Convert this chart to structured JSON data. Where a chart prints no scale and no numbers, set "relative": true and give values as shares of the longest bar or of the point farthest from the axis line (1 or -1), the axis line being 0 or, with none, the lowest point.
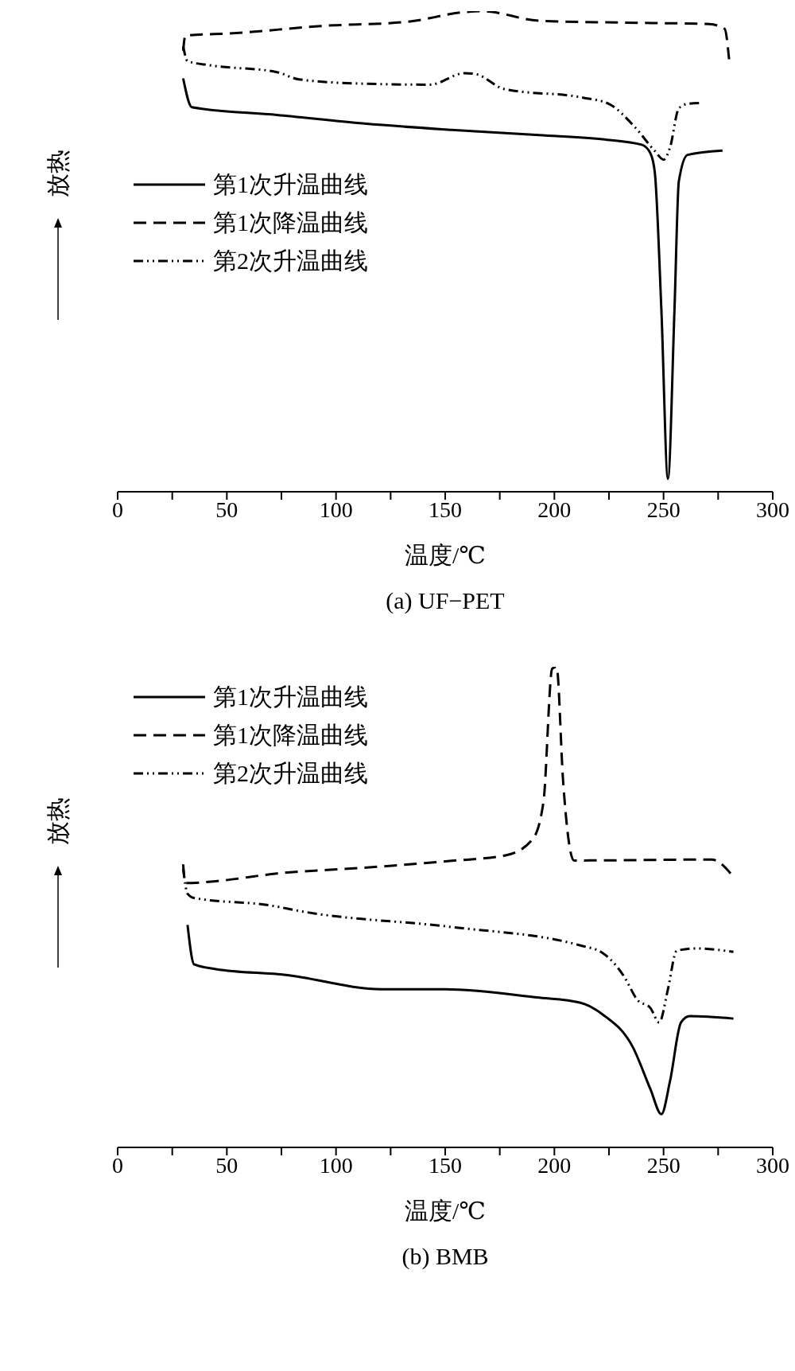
{
  "chart_data": [
    {
      "type": "line",
      "title": "(a) UF−PET",
      "xlabel": "温度/℃",
      "ylabel": "放热",
      "relative": true,
      "xlim": [
        0,
        300
      ],
      "xticks": [
        0,
        {
          "value": 25,
          "label": null
        },
        50,
        {
          "value": 75,
          "label": null
        },
        100,
        {
          "value": 125,
          "label": null
        },
        150,
        {
          "value": 175,
          "label": null
        },
        200,
        {
          "value": 225,
          "label": null
        },
        250,
        {
          "value": 275,
          "label": null
        },
        300
      ],
      "grid": false,
      "legend": "top left",
      "marker": "none",
      "series": [
        {
          "name": "第1次升温曲线",
          "color": "#000000",
          "line_style": "solid",
          "x": [
            30,
            34,
            73,
            113,
            153,
            193,
            223,
            240,
            244,
            246,
            249,
            252,
            255,
            257,
            261,
            277
          ],
          "values": [
            0.86,
            0.8,
            0.784,
            0.766,
            0.753,
            0.742,
            0.733,
            0.722,
            0.704,
            0.664,
            0.379,
            0.027,
            0.379,
            0.646,
            0.701,
            0.71
          ]
        },
        {
          "name": "第1次降温曲线",
          "color": "#000000",
          "line_style": "dashed",
          "x": [
            30,
            31,
            53,
            93,
            133,
            159,
            167,
            193,
            233,
            271,
            278,
            280
          ],
          "values": [
            0.918,
            0.949,
            0.954,
            0.969,
            0.978,
            0.998,
            1.0,
            0.98,
            0.976,
            0.973,
            0.963,
            0.9
          ]
        },
        {
          "name": "第2次升温曲线",
          "color": "#000000",
          "line_style": "dashdot",
          "x": [
            30,
            32,
            43,
            73,
            83,
            113,
            143,
            159,
            164,
            177,
            213,
            225,
            237,
            246,
            250,
            253,
            257,
            261,
            267
          ],
          "values": [
            0.927,
            0.896,
            0.887,
            0.873,
            0.858,
            0.849,
            0.847,
            0.871,
            0.869,
            0.838,
            0.82,
            0.807,
            0.758,
            0.709,
            0.691,
            0.717,
            0.798,
            0.807,
            0.809
          ]
        }
      ]
    },
    {
      "type": "line",
      "title": "(b) BMB",
      "xlabel": "温度/℃",
      "ylabel": "放热",
      "relative": true,
      "xlim": [
        0,
        300
      ],
      "xticks": [
        0,
        {
          "value": 25,
          "label": null
        },
        50,
        {
          "value": 75,
          "label": null
        },
        100,
        {
          "value": 125,
          "label": null
        },
        150,
        {
          "value": 175,
          "label": null
        },
        200,
        {
          "value": 225,
          "label": null
        },
        250,
        {
          "value": 275,
          "label": null
        },
        300
      ],
      "grid": false,
      "legend": "top left",
      "marker": "none",
      "series": [
        {
          "name": "第1次升温曲线",
          "color": "#000000",
          "line_style": "solid",
          "x": [
            32,
            35,
            45,
            77,
            121,
            150,
            192,
            212,
            222,
            236,
            244,
            249,
            253,
            258,
            262,
            282
          ],
          "values": [
            0.463,
            0.381,
            0.371,
            0.359,
            0.329,
            0.329,
            0.312,
            0.301,
            0.277,
            0.208,
            0.121,
            0.069,
            0.139,
            0.26,
            0.273,
            0.268
          ]
        },
        {
          "name": "第1次降温曲线",
          "color": "#000000",
          "line_style": "dashed",
          "x": [
            30,
            31,
            45,
            73,
            113,
            152,
            178,
            190,
            195,
            199,
            201,
            204,
            206,
            209,
            272,
            282
          ],
          "values": [
            0.589,
            0.55,
            0.554,
            0.57,
            0.582,
            0.596,
            0.608,
            0.641,
            0.719,
            0.996,
            1.0,
            0.762,
            0.658,
            0.597,
            0.599,
            0.563
          ]
        },
        {
          "name": "第2次升温曲线",
          "color": "#000000",
          "line_style": "dashdot",
          "x": [
            30,
            32,
            35,
            69,
            87,
            152,
            212,
            222,
            232,
            238,
            244,
            248,
            252,
            256,
            264,
            282
          ],
          "values": [
            0.58,
            0.528,
            0.519,
            0.504,
            0.489,
            0.459,
            0.42,
            0.405,
            0.355,
            0.307,
            0.29,
            0.26,
            0.329,
            0.409,
            0.414,
            0.407
          ]
        }
      ]
    }
  ]
}
